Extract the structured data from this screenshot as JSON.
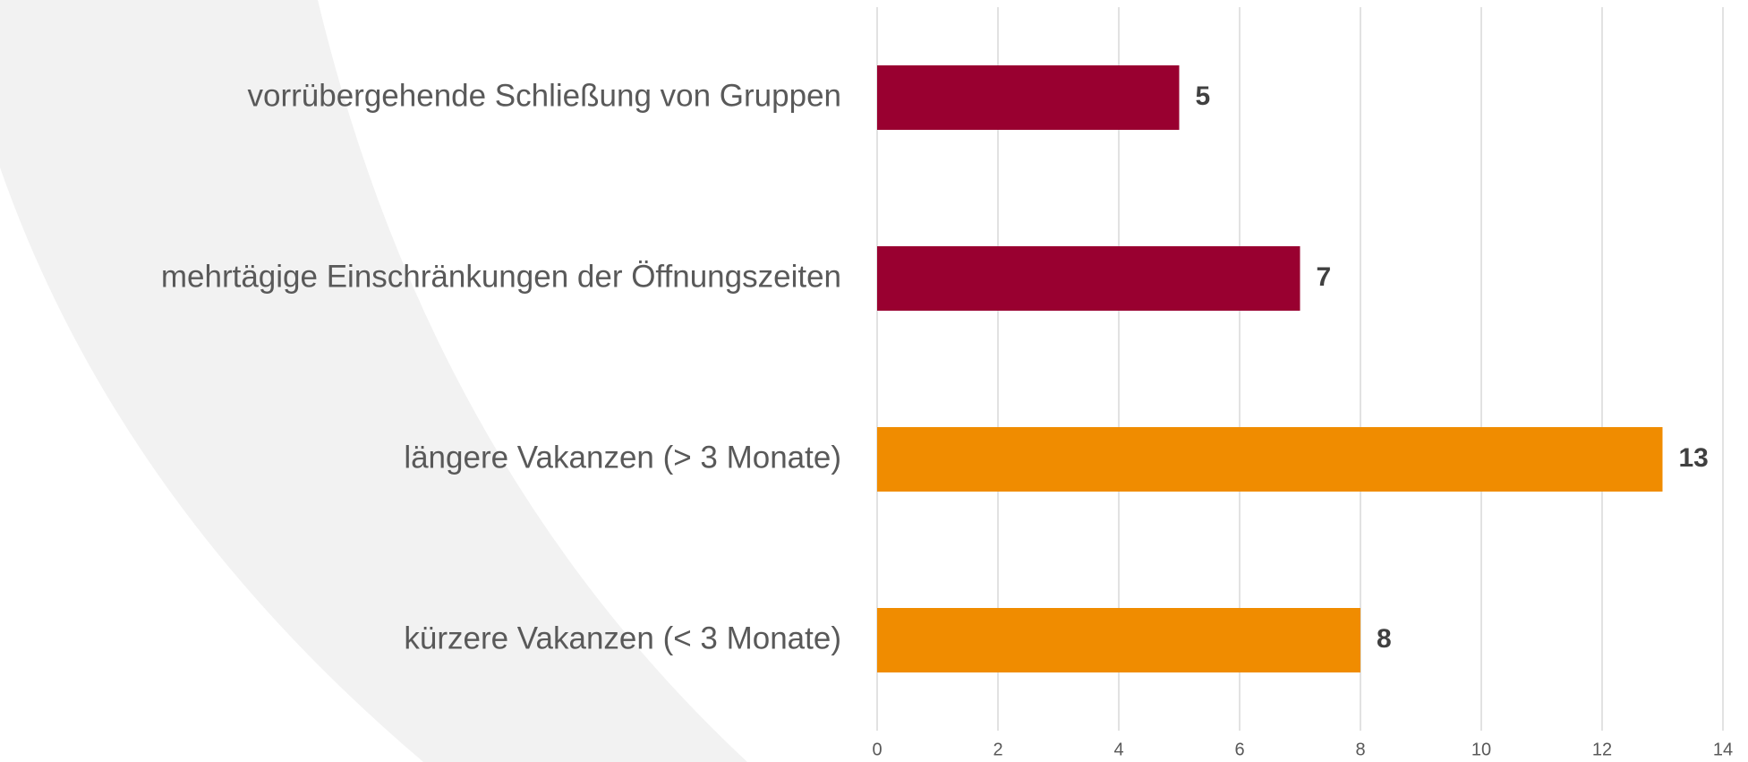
{
  "chart_data": {
    "type": "bar",
    "orientation": "horizontal",
    "categories": [
      "vorrübergehende Schließung von Gruppen",
      "mehrtägige Einschränkungen der Öffnungszeiten",
      "längere Vakanzen (> 3 Monate)",
      "kürzere Vakanzen (< 3 Monate)"
    ],
    "values": [
      5,
      7,
      13,
      8
    ],
    "colors": [
      "#990030",
      "#990030",
      "#f08c00",
      "#f08c00"
    ],
    "xlim": [
      0,
      14
    ],
    "xticks": [
      0,
      2,
      4,
      6,
      8,
      10,
      12,
      14
    ],
    "grid": true
  }
}
